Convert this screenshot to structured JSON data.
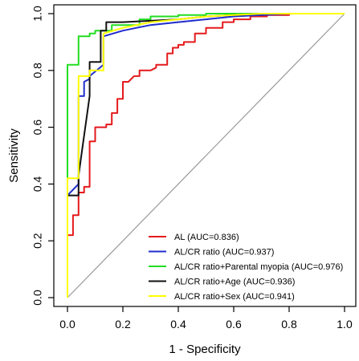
{
  "chart_data": {
    "type": "line",
    "title": "",
    "xlabel": "1 - Specificity",
    "ylabel": "Sensitivity",
    "xlim": [
      0,
      1
    ],
    "ylim": [
      0,
      1
    ],
    "xticks": [
      "0.0",
      "0.2",
      "0.4",
      "0.6",
      "0.8",
      "1.0"
    ],
    "yticks": [
      "0.0",
      "0.2",
      "0.4",
      "0.6",
      "0.8",
      "1.0"
    ],
    "grid": false,
    "legend_position": "bottom-right",
    "reference_line": {
      "from": [
        0,
        0
      ],
      "to": [
        1,
        1
      ],
      "color": "#999999"
    },
    "series": [
      {
        "name": "AL (AUC=0.836)",
        "color": "#e41a1c",
        "x": [
          0,
          0,
          0.02,
          0.02,
          0.04,
          0.04,
          0.06,
          0.06,
          0.08,
          0.08,
          0.1,
          0.1,
          0.14,
          0.14,
          0.16,
          0.16,
          0.18,
          0.18,
          0.2,
          0.2,
          0.22,
          0.24,
          0.26,
          0.26,
          0.3,
          0.32,
          0.32,
          0.36,
          0.36,
          0.38,
          0.38,
          0.4,
          0.4,
          0.42,
          0.42,
          0.46,
          0.46,
          0.5,
          0.5,
          0.56,
          0.56,
          0.6,
          0.6,
          0.66,
          0.66,
          0.72,
          0.72,
          0.8,
          0.8,
          1.0
        ],
        "y": [
          0,
          0.22,
          0.22,
          0.29,
          0.29,
          0.37,
          0.37,
          0.39,
          0.39,
          0.55,
          0.55,
          0.6,
          0.6,
          0.61,
          0.61,
          0.65,
          0.65,
          0.7,
          0.7,
          0.76,
          0.76,
          0.78,
          0.78,
          0.8,
          0.8,
          0.81,
          0.82,
          0.82,
          0.86,
          0.86,
          0.88,
          0.88,
          0.89,
          0.89,
          0.9,
          0.9,
          0.93,
          0.93,
          0.95,
          0.95,
          0.97,
          0.97,
          0.98,
          0.98,
          0.99,
          0.99,
          0.995,
          0.995,
          1.0,
          1.0
        ]
      },
      {
        "name": "AL/CR ratio (AUC=0.937)",
        "color": "#1f2ccc",
        "x": [
          0,
          0,
          0.04,
          0.04,
          0.06,
          0.06,
          0.08,
          0.08,
          0.13,
          0.13,
          0.2,
          0.3,
          0.4,
          0.5,
          0.6,
          0.7,
          0.8,
          1.0
        ],
        "y": [
          0,
          0.36,
          0.4,
          0.71,
          0.71,
          0.76,
          0.77,
          0.78,
          0.82,
          0.92,
          0.94,
          0.96,
          0.97,
          0.98,
          0.99,
          0.995,
          1.0,
          1.0
        ],
        "step": true
      },
      {
        "name": "AL/CR ratio+Parental myopia (AUC=0.976)",
        "color": "#22dd22",
        "x": [
          0,
          0,
          0.04,
          0.04,
          0.08,
          0.08,
          0.1,
          0.1,
          0.16,
          0.16,
          0.26,
          0.26,
          0.3,
          0.3,
          0.4,
          0.4,
          0.5,
          0.5,
          0.66,
          0.66,
          1.0
        ],
        "y": [
          0,
          0.82,
          0.82,
          0.92,
          0.92,
          0.93,
          0.93,
          0.94,
          0.94,
          0.96,
          0.96,
          0.98,
          0.98,
          0.99,
          0.99,
          0.995,
          0.995,
          1.0,
          1.0,
          1.0,
          1.0
        ],
        "step": true
      },
      {
        "name": "AL/CR ratio+Age (AUC=0.936)",
        "color": "#111111",
        "x": [
          0,
          0,
          0.04,
          0.04,
          0.08,
          0.08,
          0.12,
          0.12,
          0.14,
          0.14,
          0.2,
          0.3,
          0.4,
          0.5,
          0.6,
          0.7,
          0.8,
          1.0
        ],
        "y": [
          0,
          0.36,
          0.36,
          0.43,
          0.71,
          0.83,
          0.83,
          0.94,
          0.94,
          0.97,
          0.97,
          0.975,
          0.98,
          0.99,
          0.995,
          1.0,
          1.0,
          1.0
        ],
        "step": true
      },
      {
        "name": "AL/CR ratio+Sex (AUC=0.941)",
        "color": "#ffff00",
        "x": [
          0,
          0,
          0.04,
          0.04,
          0.08,
          0.08,
          0.13,
          0.13,
          0.2,
          0.3,
          0.4,
          0.5,
          0.6,
          0.7,
          0.8,
          1.0
        ],
        "y": [
          0,
          0.42,
          0.42,
          0.78,
          0.78,
          0.8,
          0.8,
          0.93,
          0.95,
          0.97,
          0.98,
          0.99,
          0.995,
          1.0,
          1.0,
          1.0
        ],
        "step": true
      }
    ],
    "legend_order": [
      0,
      1,
      2,
      3,
      4
    ]
  }
}
